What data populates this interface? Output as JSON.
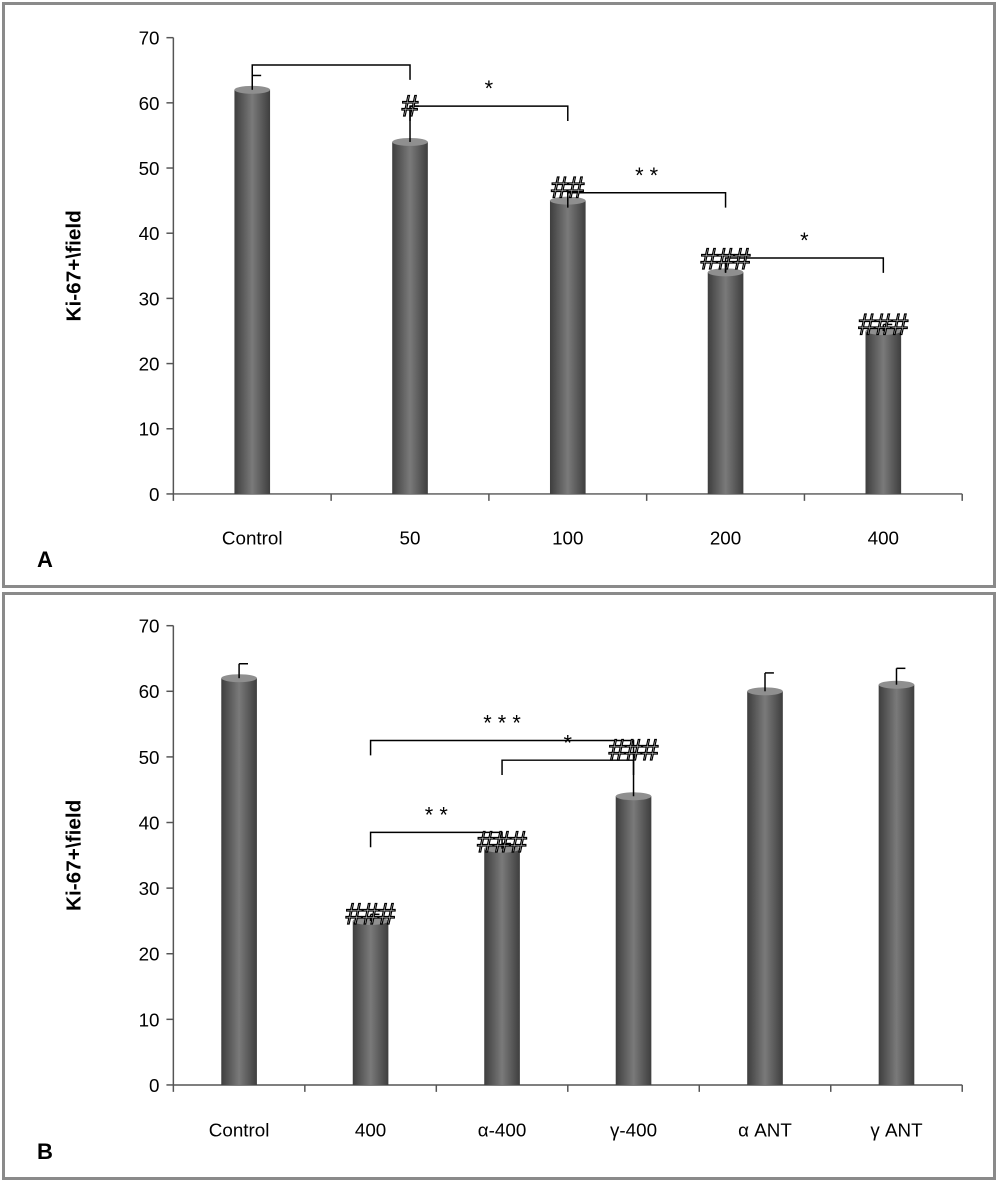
{
  "chart_data": [
    {
      "type": "bar",
      "panel_label": "A",
      "ylabel": "Ki-67+\\field",
      "xlabel": "",
      "ylim": [
        0,
        70
      ],
      "yticks": [
        0,
        10,
        20,
        30,
        40,
        50,
        60,
        70
      ],
      "categories": [
        "Control",
        "50",
        "100",
        "200",
        "400"
      ],
      "values": [
        62,
        54,
        45,
        34,
        25
      ],
      "errors": [
        2.2,
        5.5,
        1.5,
        1.5,
        1.0
      ],
      "bar_color": "#5a5a5a",
      "significance": [
        {
          "from": 0,
          "to": 1,
          "y": 65.8,
          "label": ""
        },
        {
          "from": 1,
          "to": 2,
          "y": 59.5,
          "label": "*"
        },
        {
          "from": 2,
          "to": 3,
          "y": 46.2,
          "label": "* *"
        },
        {
          "from": 3,
          "to": 4,
          "y": 36.2,
          "label": "*"
        }
      ],
      "marks": [
        {
          "index": 1,
          "label": "#",
          "y": 59.5
        },
        {
          "index": 2,
          "label": "##",
          "y": 47.0
        },
        {
          "index": 3,
          "label": "###",
          "y": 36.0
        },
        {
          "index": 4,
          "label": "###",
          "y": 26.0
        }
      ]
    },
    {
      "type": "bar",
      "panel_label": "B",
      "ylabel": "Ki-67+\\field",
      "xlabel": "",
      "ylim": [
        0,
        70
      ],
      "yticks": [
        0,
        10,
        20,
        30,
        40,
        50,
        60,
        70
      ],
      "categories": [
        "Control",
        "400",
        "α-400",
        "γ-400",
        "α ANT",
        "γ ANT"
      ],
      "values": [
        62,
        25,
        36,
        44,
        60,
        61
      ],
      "errors": [
        2.2,
        1.0,
        0.8,
        6.5,
        2.8,
        2.5
      ],
      "bar_color": "#5a5a5a",
      "significance": [
        {
          "from": 1,
          "to": 3,
          "y": 52.5,
          "label": "* * *"
        },
        {
          "from": 2,
          "to": 3,
          "y": 49.5,
          "label": "*"
        },
        {
          "from": 1,
          "to": 2,
          "y": 38.5,
          "label": "* *"
        }
      ],
      "marks": [
        {
          "index": 1,
          "label": "###",
          "y": 26.0
        },
        {
          "index": 2,
          "label": "###",
          "y": 37.0
        },
        {
          "index": 3,
          "label": "###",
          "y": 51.0
        }
      ]
    }
  ]
}
